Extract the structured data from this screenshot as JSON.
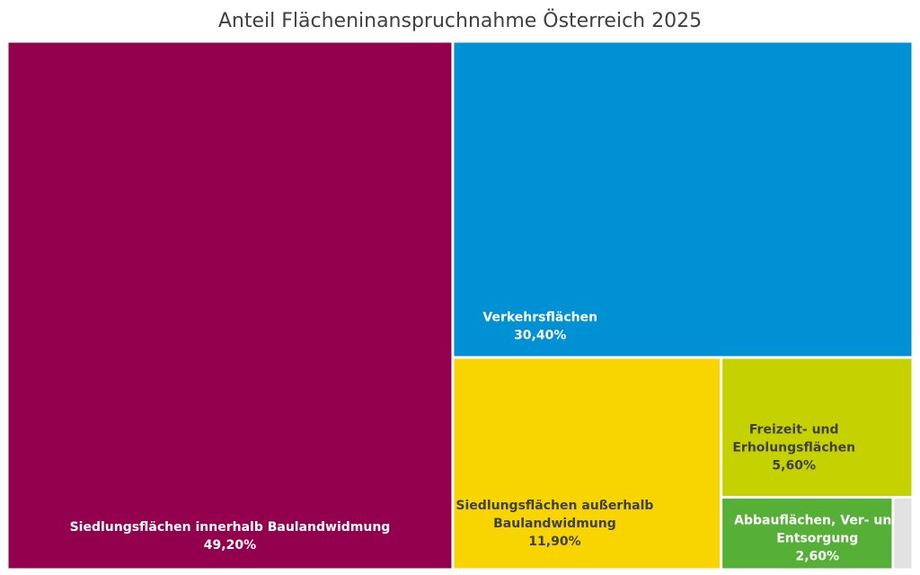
{
  "chart_data": {
    "type": "treemap",
    "title": "Anteil Flächeninanspruchnahme Österreich 2025",
    "colors": {
      "Siedlungsflächen innerhalb Baulandwidmung": "#93004e",
      "Verkehrsflächen": "#0090d4",
      "Siedlungsflächen außerhalb Baulandwidmung": "#f8d500",
      "Freizeit- und Erholungsflächen": "#c6d200",
      "Abbauflächen, Ver- und Entsorgung": "#56b037",
      "other": "#e2e2e2"
    },
    "items": [
      {
        "name": "Siedlungsflächen innerhalb Baulandwidmung",
        "label_lines": [
          "Siedlungsflächen innerhalb Baulandwidmung"
        ],
        "value": 49.2,
        "value_label": "49,20%",
        "text_color": "#ffffff"
      },
      {
        "name": "Verkehrsflächen",
        "label_lines": [
          "Verkehrsflächen"
        ],
        "value": 30.4,
        "value_label": "30,40%",
        "text_color": "#ffffff"
      },
      {
        "name": "Siedlungsflächen außerhalb Baulandwidmung",
        "label_lines": [
          "Siedlungsflächen außerhalb",
          "Baulandwidmung"
        ],
        "value": 11.9,
        "value_label": "11,90%",
        "text_color": "#404040"
      },
      {
        "name": "Freizeit- und Erholungsflächen",
        "label_lines": [
          "Freizeit- und",
          "Erholungsflächen"
        ],
        "value": 5.6,
        "value_label": "5,60%",
        "text_color": "#404040"
      },
      {
        "name": "Abbauflächen, Ver- und Entsorgung",
        "label_lines": [
          "Abbauflächen, Ver- und",
          "Entsorgung"
        ],
        "value": 2.6,
        "value_label": "2,60%",
        "text_color": "#ffffff"
      },
      {
        "name": "other",
        "label_lines": [],
        "value": 0.3,
        "value_label": "",
        "text_color": "#404040"
      }
    ]
  }
}
